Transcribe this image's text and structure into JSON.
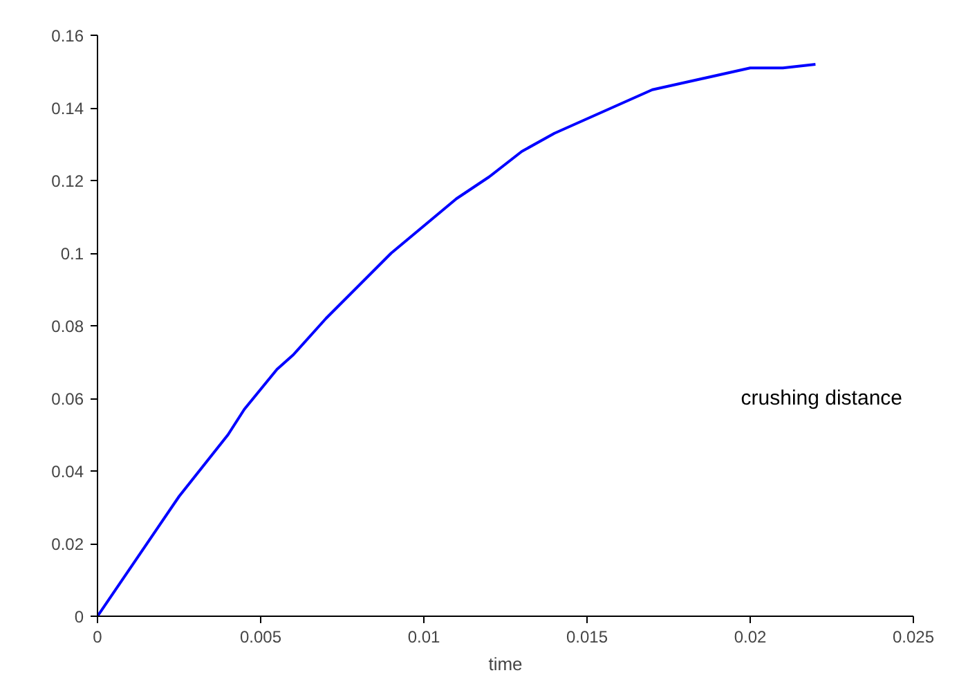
{
  "chart_data": {
    "type": "line",
    "xlabel": "time",
    "xlim": [
      0,
      0.025
    ],
    "xticks": [
      0,
      0.005,
      0.01,
      0.015,
      0.02,
      0.025
    ],
    "ylim": [
      0,
      0.16
    ],
    "yticks": [
      0,
      0.02,
      0.04,
      0.06,
      0.08,
      0.1,
      0.12,
      0.14,
      0.16
    ],
    "grid": false,
    "legend": "right",
    "marker": "none",
    "line_style": "solid",
    "series": [
      {
        "name": "crushing distance",
        "color": "#0000ff",
        "x": [
          0,
          0.0025,
          0.004,
          0.0045,
          0.0055,
          0.006,
          0.007,
          0.009,
          0.011,
          0.012,
          0.013,
          0.014,
          0.016,
          0.017,
          0.0185,
          0.02,
          0.021,
          0.022
        ],
        "values": [
          0,
          0.033,
          0.05,
          0.057,
          0.068,
          0.072,
          0.082,
          0.1,
          0.115,
          0.121,
          0.128,
          0.133,
          0.141,
          0.145,
          0.148,
          0.151,
          0.151,
          0.152
        ]
      }
    ]
  }
}
